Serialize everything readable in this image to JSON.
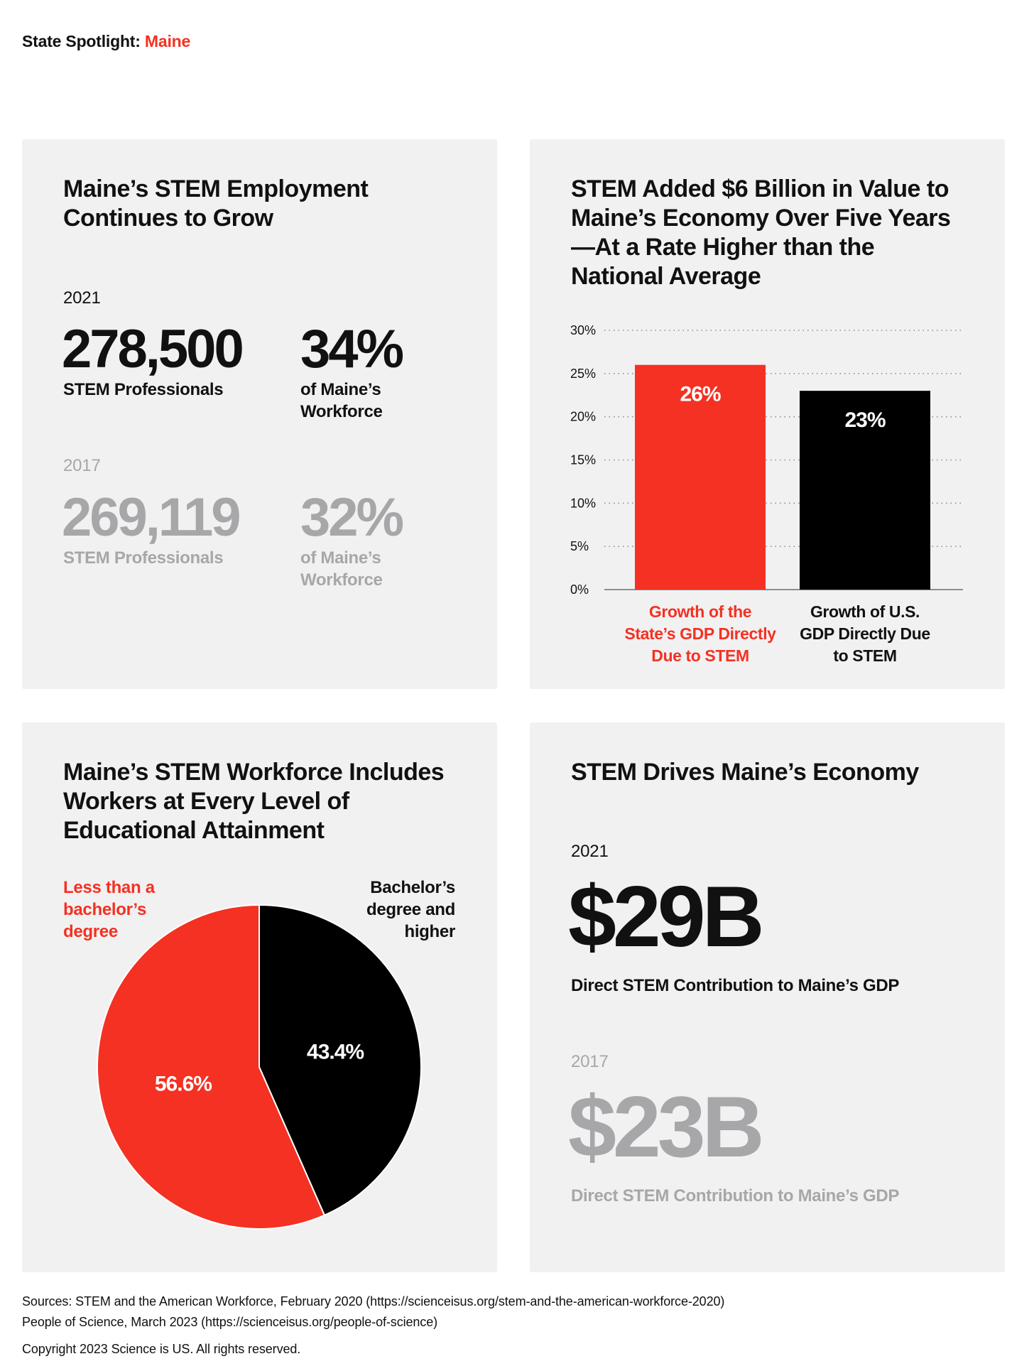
{
  "header": {
    "prefix": "State Spotlight: ",
    "state": "Maine"
  },
  "employment": {
    "title": "Maine’s STEM Employment Continues to Grow",
    "current": {
      "year": "2021",
      "count": "278,500",
      "count_label": "STEM Professionals",
      "share": "34%",
      "share_label": "of Maine’s Workforce"
    },
    "previous": {
      "year": "2017",
      "count": "269,119",
      "count_label": "STEM Professionals",
      "share": "32%",
      "share_label": "of Maine’s Workforce"
    }
  },
  "gdp_growth": {
    "title": "STEM Added $6 Billion in Value to Maine’s Economy Over Five Years—At a Rate Higher than the National Average"
  },
  "education": {
    "title": "Maine’s STEM Workforce Includes Workers at Every Level of Educational Attainment"
  },
  "economy": {
    "title": "STEM Drives Maine’s Economy",
    "current": {
      "year": "2021",
      "value": "$29B",
      "label": "Direct STEM Contribution to Maine’s GDP"
    },
    "previous": {
      "year": "2017",
      "value": "$23B",
      "label": "Direct STEM Contribution to Maine’s GDP"
    }
  },
  "footer": {
    "source1": "Sources: STEM and the American Workforce, February 2020 (https://scienceisus.org/stem-and-the-american-workforce-2020)",
    "source2": "People of Science, March 2023 (https://scienceisus.org/people-of-science)",
    "copyright": "Copyright 2023 Science is US. All rights reserved."
  },
  "colors": {
    "accent": "#f43122",
    "dark": "#000000",
    "muted": "#a7a7a9",
    "card_bg": "#f1f1f2"
  },
  "chart_data": [
    {
      "type": "bar",
      "title": "STEM Added $6 Billion in Value to Maine’s Economy Over Five Years—At a Rate Higher than the National Average",
      "categories": [
        "Growth of the State’s GDP Directly Due to STEM",
        "Growth of U.S. GDP Directly Due to STEM"
      ],
      "category_lines": [
        [
          "Growth of the",
          "State’s GDP Directly",
          "Due to STEM"
        ],
        [
          "Growth of U.S.",
          "GDP Directly Due",
          "to STEM"
        ]
      ],
      "values": [
        26,
        23
      ],
      "value_labels": [
        "26%",
        "23%"
      ],
      "colors": [
        "#f43122",
        "#000000"
      ],
      "ylim": [
        0,
        30
      ],
      "yticks": [
        0,
        5,
        10,
        15,
        20,
        25,
        30
      ],
      "ytick_labels": [
        "0%",
        "5%",
        "10%",
        "15%",
        "20%",
        "25%",
        "30%"
      ],
      "grid": true,
      "xlabel": "",
      "ylabel": ""
    },
    {
      "type": "pie",
      "title": "Maine’s STEM Workforce Includes Workers at Every Level of Educational Attainment",
      "categories": [
        "Less than a bachelor’s degree",
        "Bachelor’s degree and higher"
      ],
      "category_lines": [
        [
          "Less than a",
          "bachelor’s",
          "degree"
        ],
        [
          "Bachelor’s",
          "degree and",
          "higher"
        ]
      ],
      "values": [
        56.6,
        43.4
      ],
      "value_labels": [
        "56.6%",
        "43.4%"
      ],
      "colors": [
        "#f43122",
        "#000000"
      ],
      "legend": "top"
    }
  ]
}
